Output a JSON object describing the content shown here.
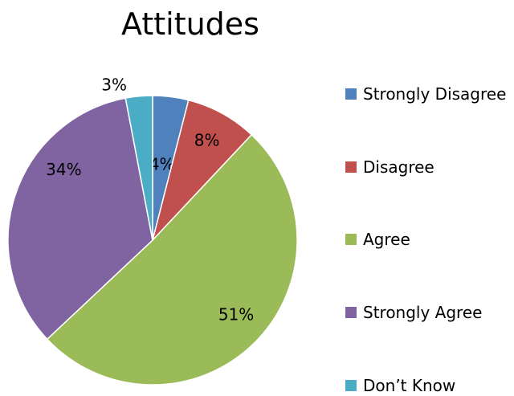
{
  "chart_data": {
    "type": "pie",
    "title": "Attitudes",
    "categories": [
      "Strongly Disagree",
      "Disagree",
      "Agree",
      "Strongly Agree",
      "Don’t  Know"
    ],
    "values": [
      4,
      8,
      51,
      34,
      3
    ],
    "data_labels": [
      "4%",
      "8%",
      "51%",
      "34%",
      "3%"
    ],
    "colors": [
      "#4f81bd",
      "#c0504d",
      "#9bbb59",
      "#8064a2",
      "#4bacc6"
    ],
    "legend_placement": "right",
    "start_angle": "12 o'clock, clockwise"
  }
}
